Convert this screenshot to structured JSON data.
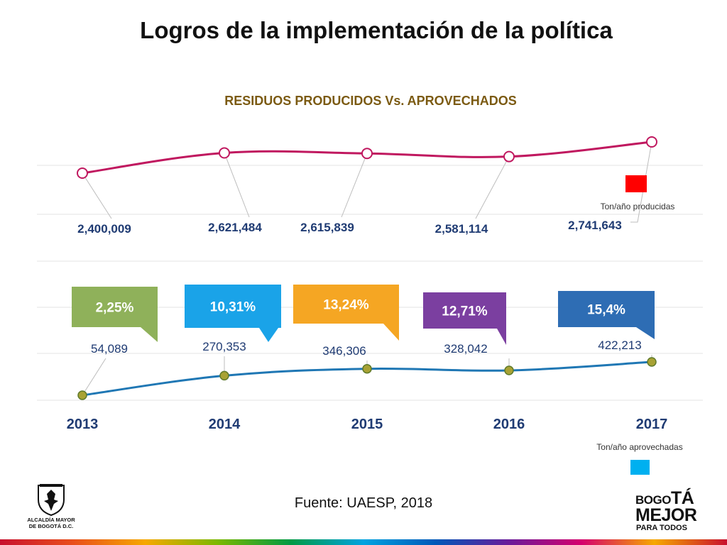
{
  "slide": {
    "title": "Logros de la implementación de la política",
    "source": "Fuente: UAESP, 2018"
  },
  "logos": {
    "left_text_line1": "ALCALDÍA MAYOR",
    "left_text_line2": "DE BOGOTÁ D.C.",
    "right_line1_a": "BOGO",
    "right_line1_b": "TÁ",
    "right_line2": "MEJOR",
    "right_line3": "PARA TODOS"
  },
  "colors": {
    "produced_line": "#c0185f",
    "utilized_line": "#1f77b4",
    "produced_legend": "#ff0000",
    "utilized_legend": "#00b0f0",
    "label_text": "#1f3b73"
  },
  "chart_data": {
    "type": "line",
    "title": "RESIDUOS PRODUCIDOS  Vs. APROVECHADOS",
    "categories": [
      "2013",
      "2014",
      "2015",
      "2016",
      "2017"
    ],
    "series": [
      {
        "name": "Ton/año producidas",
        "values": [
          2400009,
          2621484,
          2615839,
          2581114,
          2741643
        ],
        "labels": [
          "2,400,009",
          "2,621,484",
          "2,615,839",
          "2,581,114",
          "2,741,643"
        ]
      },
      {
        "name": "Ton/año aprovechadas",
        "values": [
          54089,
          270353,
          346306,
          328042,
          422213
        ],
        "labels": [
          "54,089",
          "270,353",
          "346,306",
          "328,042",
          "422,213"
        ]
      }
    ],
    "percentages": [
      {
        "label": "2,25%",
        "value": 2.25,
        "color": "#8fb15a"
      },
      {
        "label": "10,31%",
        "value": 10.31,
        "color": "#1aa3e8"
      },
      {
        "label": "13,24%",
        "value": 13.24,
        "color": "#f5a623"
      },
      {
        "label": "12,71%",
        "value": 12.71,
        "color": "#7b3fa0"
      },
      {
        "label": "15,4%",
        "value": 15.4,
        "color": "#2e6db4"
      }
    ]
  }
}
